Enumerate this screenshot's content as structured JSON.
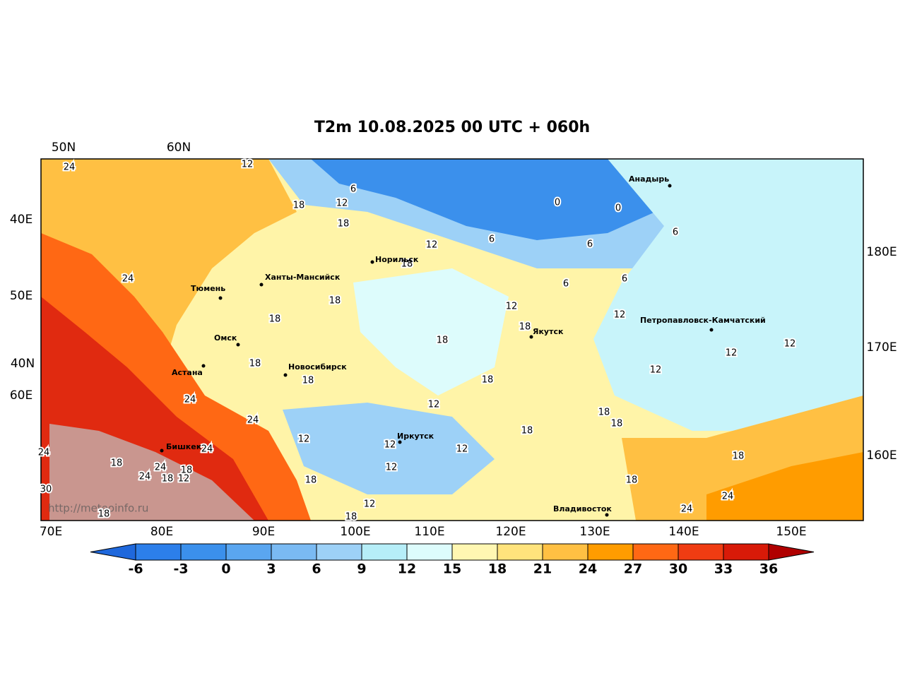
{
  "title": "T2m 10.08.2025 00 UTC + 060h",
  "grid_labels": {
    "top": [
      "50N",
      "60N"
    ],
    "left": [
      "40E",
      "50E",
      "40N",
      "60E"
    ],
    "right": [
      "180E",
      "170E",
      "160E"
    ],
    "bottom": [
      "70E",
      "80E",
      "90E",
      "100E",
      "110E",
      "120E",
      "130E",
      "140E",
      "150E"
    ]
  },
  "cities": [
    "Анадырь",
    "Норильск",
    "Ханты-Мансийск",
    "Тюмень",
    "Якутск",
    "Петропавловск-Камчатский",
    "Омск",
    "Новосибирск",
    "Астана",
    "Иркутск",
    "Бишкек",
    "Владивосток"
  ],
  "contour_labels": [
    24,
    12,
    6,
    18,
    12,
    18,
    0,
    0,
    6,
    6,
    6,
    12,
    18,
    24,
    6,
    6,
    18,
    18,
    12,
    12,
    18,
    18,
    12,
    12,
    18,
    12,
    18,
    18,
    24,
    24,
    12,
    18,
    18,
    18,
    24,
    24,
    12,
    12,
    12,
    18,
    24,
    18,
    18,
    12,
    24,
    18,
    12,
    18,
    18,
    30,
    24,
    12,
    24,
    18,
    18
  ],
  "watermark": "http://meteoinfo.ru",
  "colorbar": {
    "ticks": [
      -6,
      -3,
      0,
      3,
      6,
      9,
      12,
      15,
      18,
      21,
      24,
      27,
      30,
      33,
      36
    ],
    "colors": [
      "#1f68dc",
      "#2c7fea",
      "#3b90ec",
      "#5aa6f0",
      "#7abaf3",
      "#9dd1f7",
      "#b6eef8",
      "#ddfcfc",
      "#fff7b2",
      "#ffe37c",
      "#ffc043",
      "#ff9c00",
      "#ff6814",
      "#f03c12",
      "#d81a08",
      "#b00000"
    ]
  }
}
